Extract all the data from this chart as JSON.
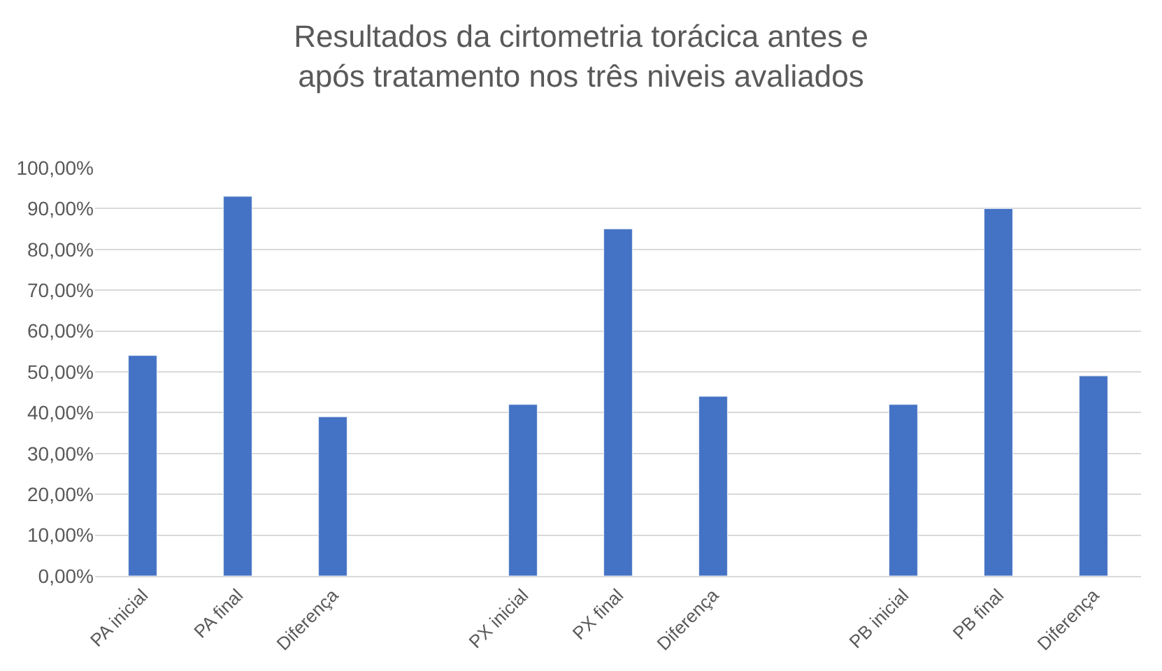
{
  "chart_data": {
    "type": "bar",
    "title": "Resultados da cirtometria torácica antes e após tratamento nos três niveis avaliados",
    "categories": [
      "PA inicial",
      "PA final",
      "Diferença",
      null,
      "PX inicial",
      "PX final",
      "Diferença",
      null,
      "PB inicial",
      "PB final",
      "Diferença"
    ],
    "values": [
      54,
      93,
      39,
      null,
      42,
      85,
      44,
      null,
      42,
      90,
      49
    ],
    "color": "#4472c4",
    "ylim": [
      0,
      100
    ],
    "yticks": [
      {
        "value": 0,
        "label": "0,00%"
      },
      {
        "value": 10,
        "label": "10,00%"
      },
      {
        "value": 20,
        "label": "20,00%"
      },
      {
        "value": 30,
        "label": "30,00%"
      },
      {
        "value": 40,
        "label": "40,00%"
      },
      {
        "value": 50,
        "label": "50,00%"
      },
      {
        "value": 60,
        "label": "60,00%"
      },
      {
        "value": 70,
        "label": "70,00%"
      },
      {
        "value": 80,
        "label": "80,00%"
      },
      {
        "value": 90,
        "label": "90,00%"
      },
      {
        "value": 100,
        "label": "100,00%"
      }
    ],
    "grid": "y",
    "legend": false
  }
}
